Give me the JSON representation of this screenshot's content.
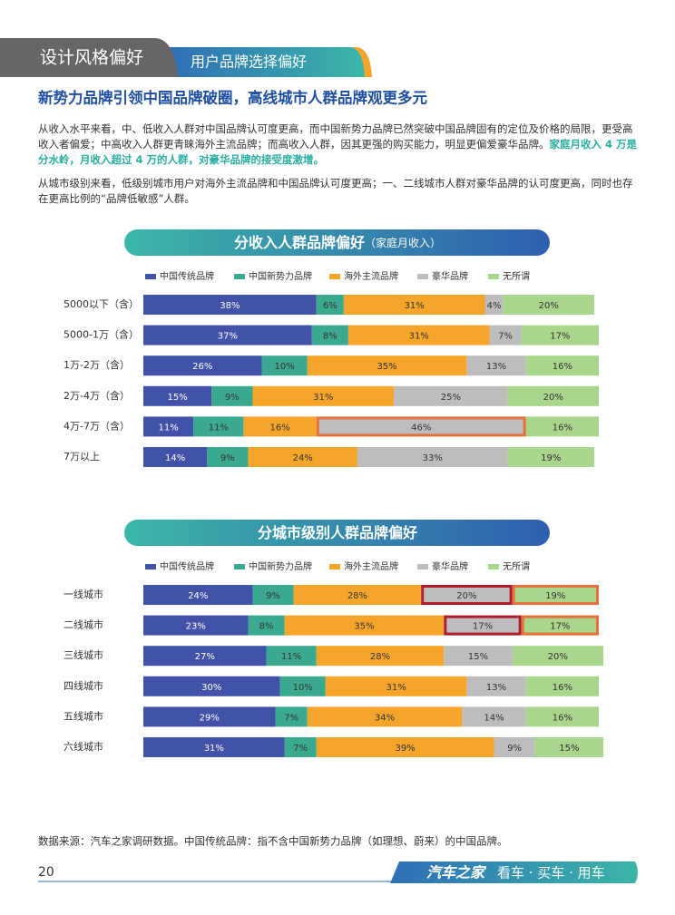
{
  "header": {
    "section": "设计风格偏好",
    "tab": "用户品牌选择偏好"
  },
  "headline": "新势力品牌引领中国品牌破圈，高线城市人群品牌观更多元",
  "paragraphs": [
    {
      "text": "从收入水平来看，中、低收入人群对中国品牌认可度更高，而中国新势力品牌已然突破中国品牌固有的定位及价格的局限，更受高收入者偏爱；中高收入人群更青睐海外主流品牌；而高收入人群，因其更强的购买能力，明显更偏爱豪华品牌。",
      "highlight": "家庭月收入 4 万是分水岭，月收入超过 4 万的人群，对豪华品牌的接受度激增。"
    },
    {
      "text": "从城市级别来看，低级别城市用户对海外主流品牌和中国品牌认可度更高；一、二线城市人群对豪华品牌的认可度更高，同时也存在更高比例的“品牌低敏感”人群。"
    }
  ],
  "chart_data": [
    {
      "type": "stacked-bar",
      "title": "分收入人群品牌偏好",
      "subtitle": "（家庭月收入）",
      "categories": [
        "5000以下（含）",
        "5000-1万（含）",
        "1万-2万（含）",
        "2万-4万（含）",
        "4万-7万（含）",
        "7万以上"
      ],
      "series": [
        {
          "name": "中国传统品牌",
          "color": "#4152a8",
          "values": [
            38,
            37,
            26,
            15,
            11,
            14
          ],
          "value_labels": [
            "38%",
            "37%",
            "26%",
            "15%",
            "11%",
            "14%"
          ]
        },
        {
          "name": "中国新势力品牌",
          "color": "#3aa98f",
          "values": [
            6,
            8,
            10,
            9,
            11,
            9
          ],
          "value_labels": [
            "6%",
            "8%",
            "10%",
            "9%",
            "11%",
            "9%"
          ]
        },
        {
          "name": "海外主流品牌",
          "color": "#f5a52a",
          "values": [
            31,
            31,
            35,
            31,
            16,
            24
          ],
          "value_labels": [
            "31%",
            "31%",
            "35%",
            "31%",
            "16%",
            "24%"
          ]
        },
        {
          "name": "豪华品牌",
          "color": "#bdbdbd",
          "values": [
            4,
            7,
            13,
            25,
            46,
            33
          ],
          "value_labels": [
            "4%",
            "7%",
            "13%",
            "25%",
            "46%",
            "33%"
          ]
        },
        {
          "name": "无所谓",
          "color": "#a9d58c",
          "values": [
            20,
            17,
            16,
            20,
            16,
            19
          ],
          "value_labels": [
            "20%",
            "17%",
            "16%",
            "20%",
            "16%",
            "19%"
          ]
        }
      ]
    },
    {
      "type": "stacked-bar",
      "title": "分城市级别人群品牌偏好",
      "categories": [
        "一线城市",
        "二线城市",
        "三线城市",
        "四线城市",
        "五线城市",
        "六线城市"
      ],
      "series": [
        {
          "name": "中国传统品牌",
          "color": "#4152a8",
          "values": [
            24,
            23,
            27,
            30,
            29,
            31
          ],
          "value_labels": [
            "24%",
            "23%",
            "27%",
            "30%",
            "29%",
            "31%"
          ]
        },
        {
          "name": "中国新势力品牌",
          "color": "#3aa98f",
          "values": [
            9,
            8,
            11,
            10,
            7,
            7
          ],
          "value_labels": [
            "9%",
            "8%",
            "11%",
            "10%",
            "7%",
            "7%"
          ]
        },
        {
          "name": "海外主流品牌",
          "color": "#f5a52a",
          "values": [
            28,
            35,
            28,
            31,
            34,
            39
          ],
          "value_labels": [
            "28%",
            "35%",
            "28%",
            "31%",
            "34%",
            "39%"
          ]
        },
        {
          "name": "豪华品牌",
          "color": "#bdbdbd",
          "values": [
            20,
            17,
            15,
            13,
            14,
            9
          ],
          "value_labels": [
            "20%",
            "17%",
            "15%",
            "13%",
            "14%",
            "9%"
          ]
        },
        {
          "name": "无所谓",
          "color": "#a9d58c",
          "values": [
            19,
            17,
            20,
            16,
            16,
            15
          ],
          "value_labels": [
            "19%",
            "17%",
            "20%",
            "16%",
            "16%",
            "15%"
          ]
        }
      ]
    }
  ],
  "footnote": "数据来源：汽车之家调研数据。中国传统品牌：指不含中国新势力品牌（如理想、蔚来）的中国品牌。",
  "footer": {
    "page": 20,
    "brand": "汽车之家",
    "slogan": "看车 · 买车 · 用车"
  }
}
